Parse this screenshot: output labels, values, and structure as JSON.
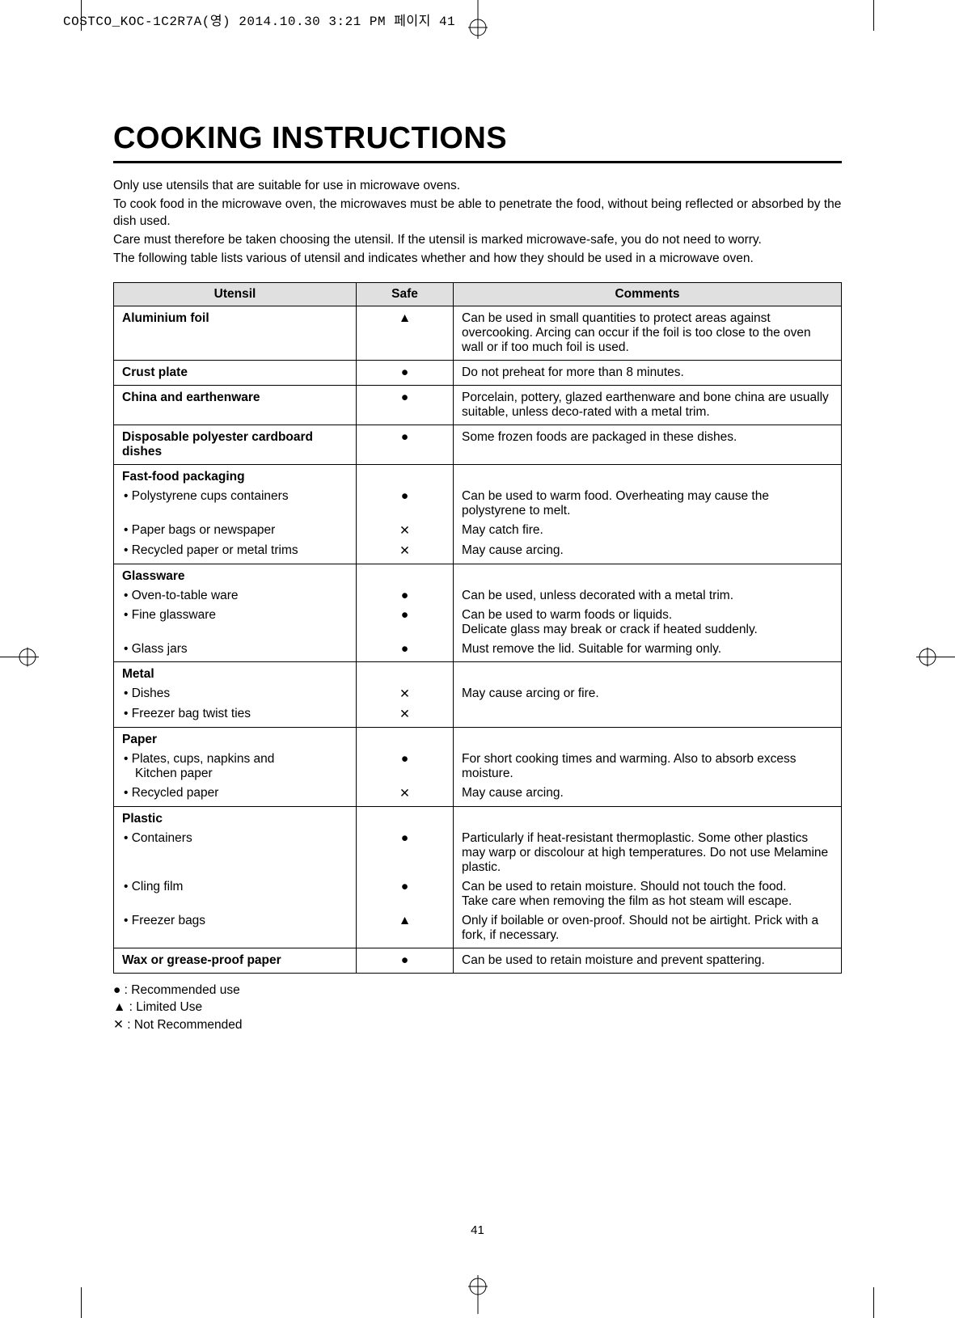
{
  "header": "COSTCO_KOC-1C2R7A(영) 2014.10.30 3:21 PM 페이지 41",
  "title": "COOKING INSTRUCTIONS",
  "intro": [
    "Only use utensils that are suitable for use in microwave ovens.",
    "To cook food in the microwave oven, the microwaves must be able to penetrate the food, without being reflected or absorbed by the dish used.",
    "Care must therefore be taken choosing the utensil. If the utensil is marked microwave-safe, you do not need to worry.",
    "The following table lists various of utensil and indicates whether and how they should be used in a microwave oven."
  ],
  "symbols": {
    "recommended": "●",
    "limited": "▲",
    "not": "✕"
  },
  "table": {
    "headers": {
      "utensil": "Utensil",
      "safe": "Safe",
      "comments": "Comments"
    },
    "rows": [
      {
        "utensil_bold": "Aluminium foil",
        "safe": "▲",
        "comment": "Can be used in small quantities to protect areas against overcooking. Arcing can occur if the foil is too close to the oven wall or if too much foil is used."
      },
      {
        "utensil_bold": "Crust plate",
        "safe": "●",
        "comment": "Do not preheat for more than 8 minutes."
      },
      {
        "utensil_bold": "China and earthenware",
        "safe": "●",
        "comment": "Porcelain, pottery, glazed earthenware and bone china are usually suitable, unless deco-rated with a metal trim."
      },
      {
        "utensil_bold": "Disposable polyester cardboard dishes",
        "safe": "●",
        "comment": "Some frozen foods are packaged in these dishes."
      },
      {
        "group_start": true,
        "utensil_bold": "Fast-food packaging",
        "safe": "",
        "comment": ""
      },
      {
        "grouped": true,
        "utensil_sub": "Polystyrene cups containers",
        "safe": "●",
        "comment": "Can be used to warm food. Overheating may cause the polystyrene to melt."
      },
      {
        "grouped": true,
        "utensil_sub": "Paper bags or newspaper",
        "safe": "✕",
        "comment": "May catch fire."
      },
      {
        "grouped": true,
        "utensil_sub": "Recycled paper or metal trims",
        "safe": "✕",
        "comment": "May cause arcing."
      },
      {
        "group_start": true,
        "utensil_bold": "Glassware",
        "safe": "",
        "comment": ""
      },
      {
        "grouped": true,
        "utensil_sub": "Oven-to-table ware",
        "safe": "●",
        "comment": "Can be used, unless decorated with a metal trim."
      },
      {
        "grouped": true,
        "utensil_sub": "Fine glassware",
        "safe": "●",
        "comment": "Can be used to warm foods or liquids.\nDelicate glass may break or crack if heated suddenly."
      },
      {
        "grouped": true,
        "utensil_sub": "Glass jars",
        "safe": "●",
        "comment": "Must remove the lid. Suitable for warming only."
      },
      {
        "group_start": true,
        "utensil_bold": "Metal",
        "safe": "",
        "comment": ""
      },
      {
        "grouped": true,
        "utensil_sub": "Dishes",
        "safe": "✕",
        "comment": "May cause arcing or fire."
      },
      {
        "grouped": true,
        "utensil_sub": "Freezer bag twist ties",
        "safe": "✕",
        "comment": ""
      },
      {
        "group_start": true,
        "utensil_bold": "Paper",
        "safe": "",
        "comment": ""
      },
      {
        "grouped": true,
        "utensil_sub": "Plates, cups, napkins and",
        "utensil_indent": "Kitchen paper",
        "safe": "●",
        "comment": "For short cooking times and warming. Also to absorb excess moisture."
      },
      {
        "grouped": true,
        "utensil_sub": "Recycled paper",
        "safe": "✕",
        "comment": "May cause arcing."
      },
      {
        "group_start": true,
        "utensil_bold": "Plastic",
        "safe": "",
        "comment": ""
      },
      {
        "grouped": true,
        "utensil_sub": "Containers",
        "safe": "●",
        "comment": "Particularly if heat-resistant thermoplastic. Some other plastics may warp or discolour at high temperatures. Do not use Melamine plastic."
      },
      {
        "grouped": true,
        "utensil_sub": "Cling film",
        "safe": "●",
        "comment": "Can be used to retain moisture. Should not touch the food.\nTake care when removing the film as hot steam will escape."
      },
      {
        "grouped": true,
        "utensil_sub": "Freezer bags",
        "safe": "▲",
        "comment": "Only if boilable or oven-proof. Should not be airtight. Prick with a fork, if necessary."
      },
      {
        "utensil_bold": "Wax or grease-proof paper",
        "safe": "●",
        "comment": "Can be used to retain moisture and prevent spattering."
      }
    ]
  },
  "legend": [
    {
      "sym": "●",
      "text": " : Recommended use"
    },
    {
      "sym": "▲",
      "text": " : Limited Use"
    },
    {
      "sym": "✕",
      "text": " : Not Recommended"
    }
  ],
  "page_number": "41",
  "colors": {
    "page_bg": "#ffffff",
    "text": "#000000",
    "header_bg": "#e0e0e0",
    "border": "#000000"
  }
}
